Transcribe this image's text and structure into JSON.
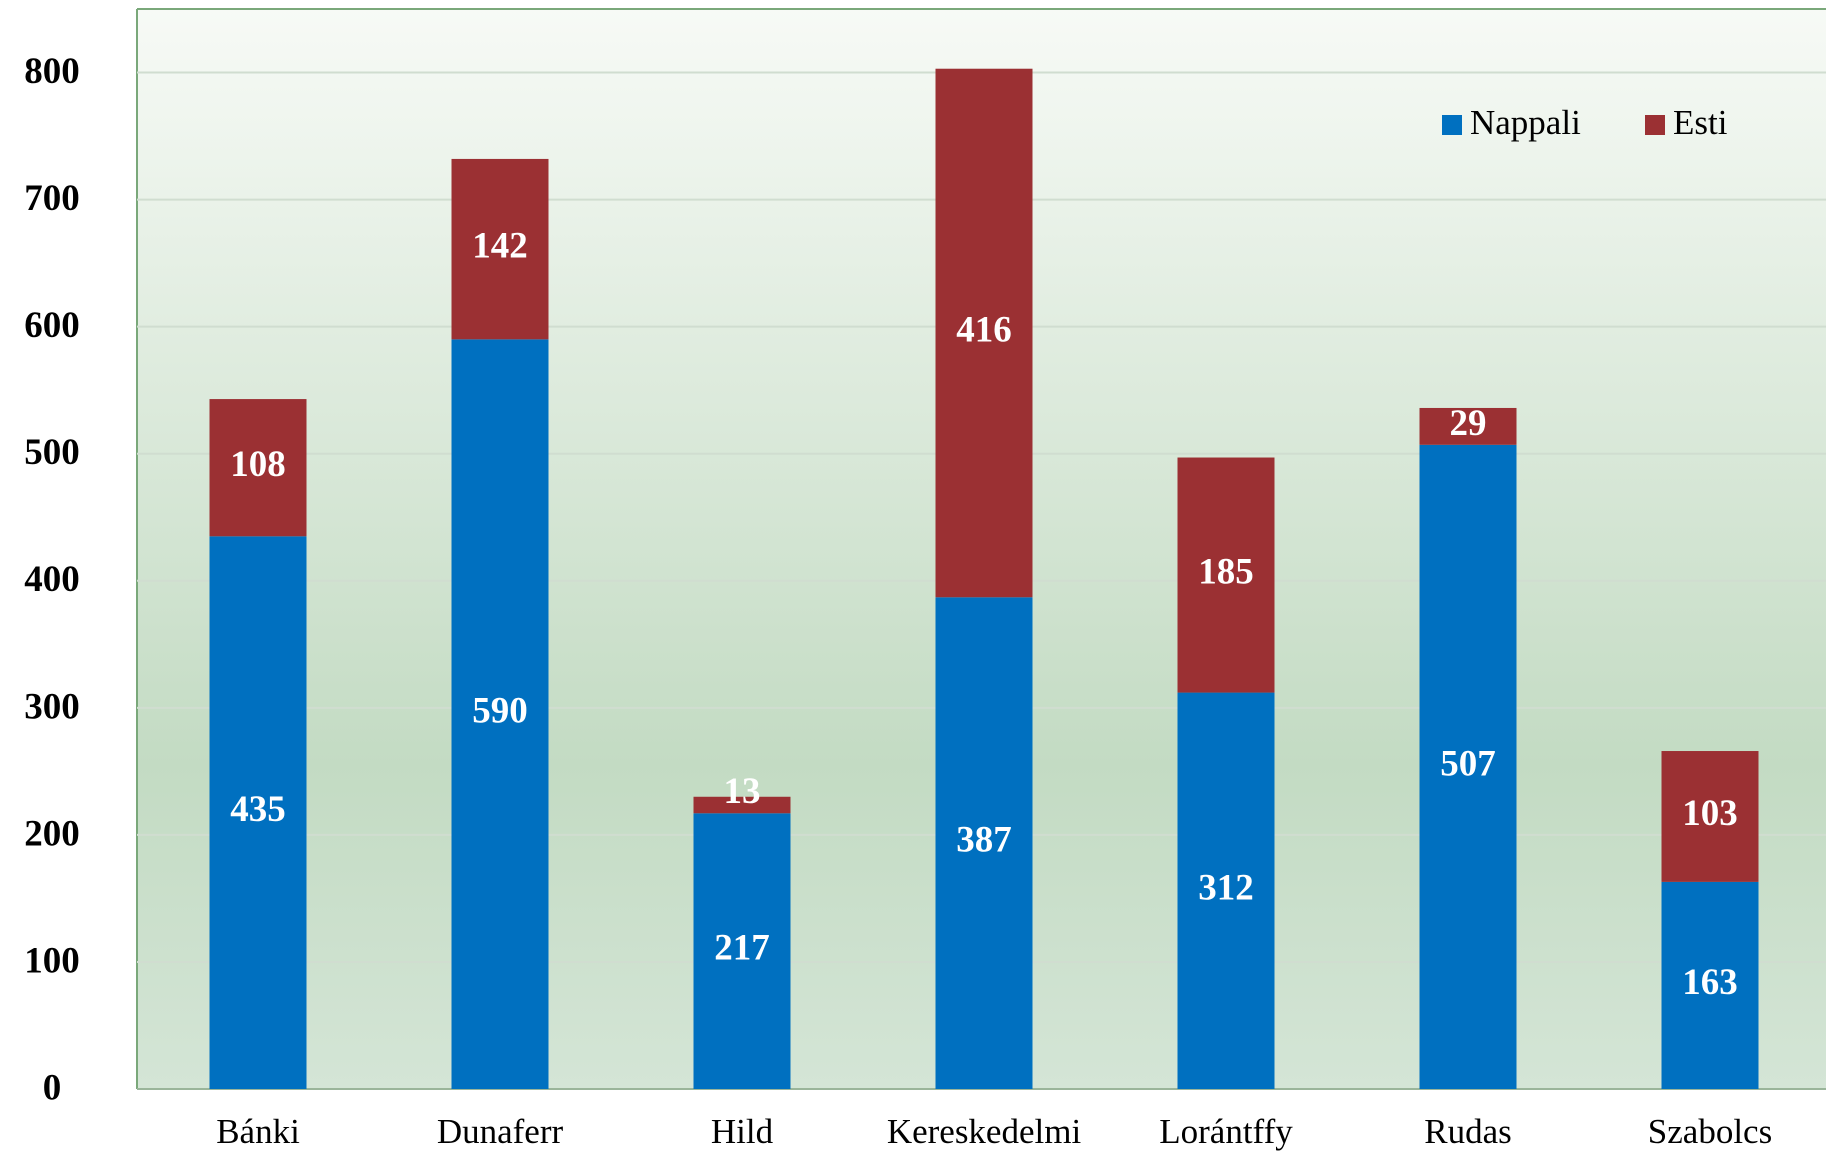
{
  "chart_data": {
    "type": "stacked_bar",
    "categories": [
      "Bánki",
      "Dunaferr",
      "Hild",
      "Kereskedelmi",
      "Lorántffy",
      "Rudas",
      "Szabolcs"
    ],
    "series": [
      {
        "name": "Nappali",
        "color": "#0070c0",
        "values": [
          435,
          590,
          217,
          387,
          312,
          507,
          163
        ]
      },
      {
        "name": "Esti",
        "color": "#9b3033",
        "values": [
          108,
          142,
          13,
          416,
          185,
          29,
          103
        ]
      }
    ],
    "ylim": [
      0,
      850
    ],
    "yticks": [
      0,
      100,
      200,
      300,
      400,
      500,
      600,
      700,
      800
    ],
    "grid": true,
    "legend": "top-right"
  }
}
